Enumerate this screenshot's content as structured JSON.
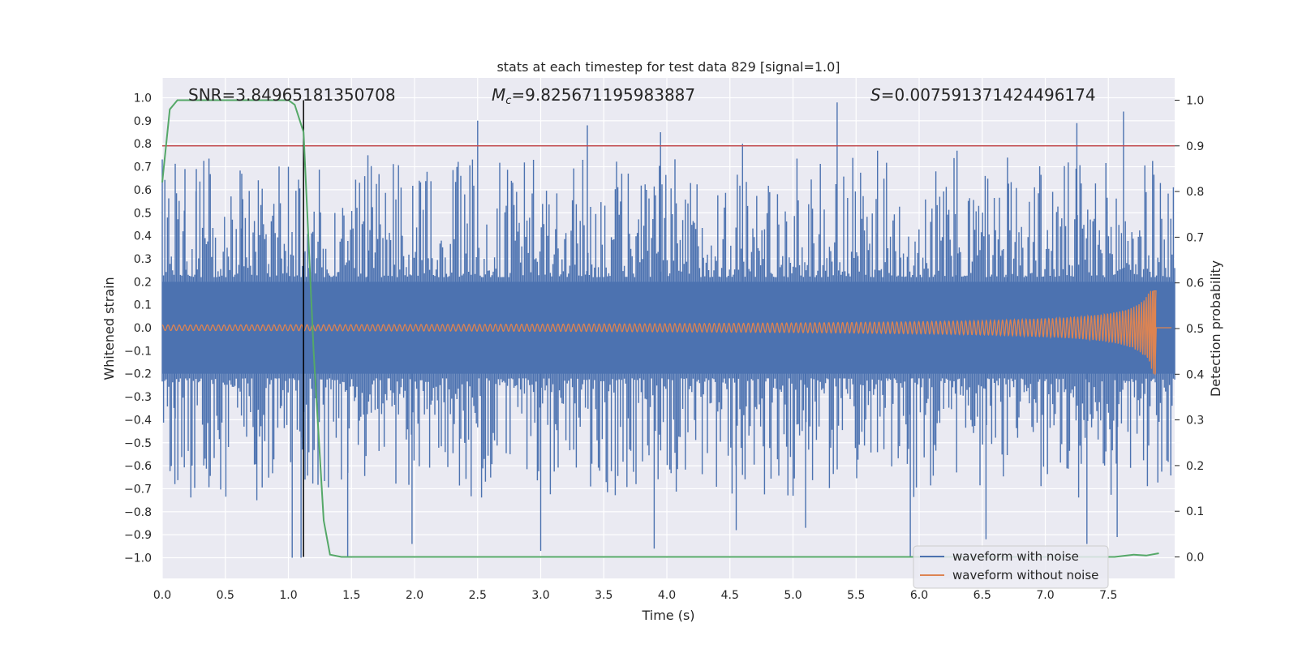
{
  "chart_data": {
    "type": "line",
    "title": "stats at each timestep for test data 829 [signal=1.0]",
    "xlabel": "Time (s)",
    "ylabel": "Whitened strain",
    "y2label": "Detection probability",
    "xlim": [
      0.0,
      8.0
    ],
    "ylim": [
      -1.1,
      1.1
    ],
    "y2lim": [
      -0.05,
      1.05
    ],
    "xticks": [
      "0.0",
      "0.5",
      "1.0",
      "1.5",
      "2.0",
      "2.5",
      "3.0",
      "3.5",
      "4.0",
      "4.5",
      "5.0",
      "5.5",
      "6.0",
      "6.5",
      "7.0",
      "7.5"
    ],
    "yticks": [
      "1.0",
      "0.9",
      "0.8",
      "0.7",
      "0.6",
      "0.5",
      "0.4",
      "0.3",
      "0.2",
      "0.1",
      "0.0",
      "−0.1",
      "−0.2",
      "−0.3",
      "−0.4",
      "−0.5",
      "−0.6",
      "−0.7",
      "−0.8",
      "−0.9",
      "−1.0"
    ],
    "y2ticks": [
      "1.0",
      "0.9",
      "0.8",
      "0.7",
      "0.6",
      "0.5",
      "0.4",
      "0.3",
      "0.2",
      "0.1",
      "0.0"
    ],
    "annotations": {
      "snr": "SNR=3.84965181350708",
      "mc_symbol": "M",
      "mc_sub": "c",
      "mc_value": "=9.825671195983887",
      "s_symbol": "S",
      "s_value": "=0.0075913714244961​74"
    },
    "threshold_y2": 0.9,
    "peak_time": 1.12,
    "detection_probability": {
      "x": [
        0.0,
        0.06,
        0.12,
        0.2,
        0.4,
        0.6,
        0.8,
        1.0,
        1.05,
        1.12,
        1.2,
        1.28,
        1.33,
        1.42,
        2.0,
        3.0,
        4.0,
        5.0,
        6.0,
        7.0,
        7.55,
        7.7,
        7.8,
        7.9
      ],
      "y": [
        0.82,
        0.98,
        1.0,
        1.0,
        1.0,
        1.0,
        1.0,
        1.0,
        0.99,
        0.93,
        0.45,
        0.08,
        0.005,
        0.0,
        0.0,
        0.0,
        0.0,
        0.0,
        0.0,
        0.0,
        0.0,
        0.005,
        0.003,
        0.008
      ]
    },
    "series": [
      {
        "name": "waveform with noise",
        "color": "#4c72b0",
        "envelope": [
          -1.0,
          1.0
        ],
        "peaks_top": [
          [
            0.18,
            0.69
          ],
          [
            0.27,
            0.69
          ],
          [
            0.63,
            0.67
          ],
          [
            1.0,
            0.7
          ],
          [
            1.63,
            0.75
          ],
          [
            2.5,
            0.9
          ],
          [
            3.37,
            0.88
          ],
          [
            3.95,
            0.85
          ],
          [
            4.6,
            0.8
          ],
          [
            5.35,
            0.98
          ],
          [
            5.67,
            0.77
          ],
          [
            6.3,
            0.77
          ],
          [
            6.7,
            0.74
          ],
          [
            7.25,
            0.89
          ],
          [
            7.62,
            0.94
          ]
        ],
        "peaks_bottom": [
          [
            0.1,
            -0.68
          ],
          [
            0.75,
            -0.75
          ],
          [
            1.03,
            -1.0
          ],
          [
            1.1,
            -1.0
          ],
          [
            1.47,
            -1.0
          ],
          [
            1.98,
            -0.94
          ],
          [
            3.0,
            -0.97
          ],
          [
            3.9,
            -0.96
          ],
          [
            4.55,
            -0.88
          ],
          [
            5.1,
            -0.87
          ],
          [
            5.93,
            -1.0
          ],
          [
            6.53,
            -0.92
          ],
          [
            7.33,
            -0.94
          ],
          [
            7.57,
            -0.91
          ]
        ]
      },
      {
        "name": "waveform without noise",
        "color": "#dd8452"
      }
    ],
    "legend": {
      "position": "lower-right",
      "entries": [
        "waveform with noise",
        "waveform without noise"
      ]
    },
    "colors": {
      "background": "#eaeaf2",
      "grid": "#ffffff",
      "noise": "#4c72b0",
      "clean": "#dd8452",
      "probability": "#55a868",
      "threshold": "#c44e52",
      "marker": "#000000"
    },
    "grid": true
  }
}
